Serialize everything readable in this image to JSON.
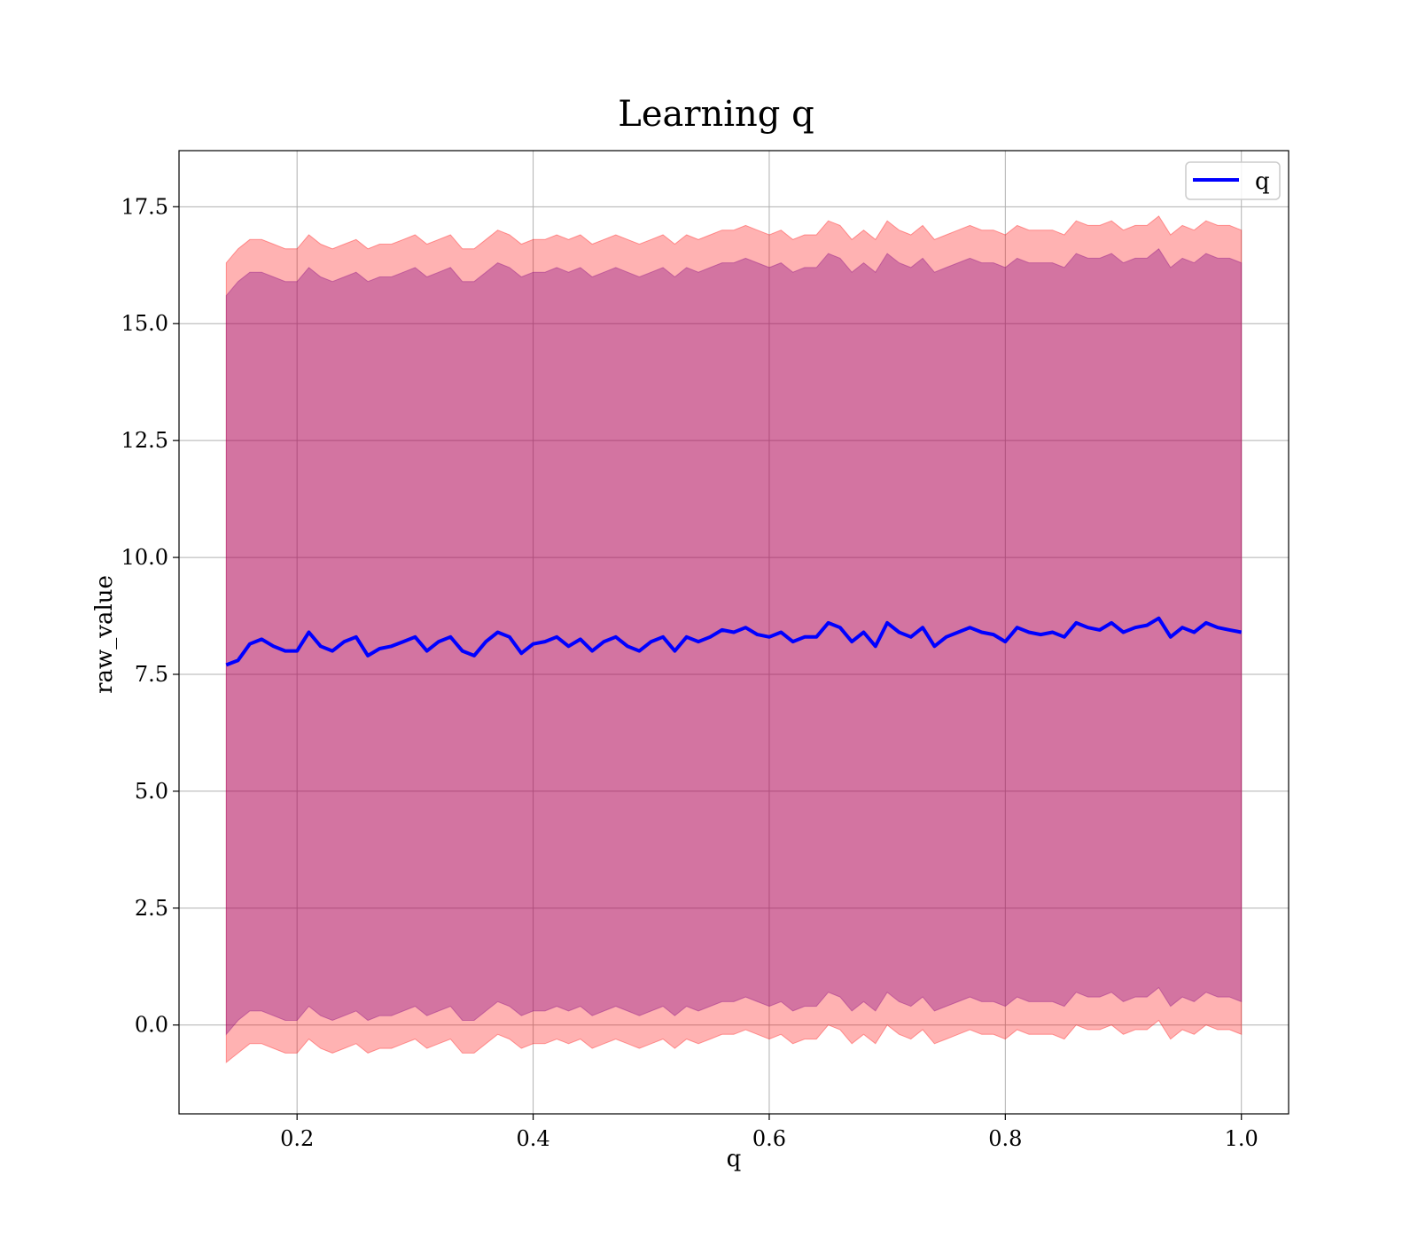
{
  "chart_data": {
    "type": "line",
    "title": "Learning q",
    "xlabel": "q",
    "ylabel": "raw_value",
    "xlim": [
      0.1,
      1.04
    ],
    "ylim": [
      -1.9,
      18.7
    ],
    "xticks": [
      0.2,
      0.4,
      0.6,
      0.8,
      1.0
    ],
    "xtick_labels": [
      "0.2",
      "0.4",
      "0.6",
      "0.8",
      "1.0"
    ],
    "yticks": [
      0.0,
      2.5,
      5.0,
      7.5,
      10.0,
      12.5,
      15.0,
      17.5
    ],
    "ytick_labels": [
      "0.0",
      "2.5",
      "5.0",
      "7.5",
      "10.0",
      "12.5",
      "15.0",
      "17.5"
    ],
    "grid": true,
    "legend": {
      "position": "top-right",
      "entries": [
        "q"
      ]
    },
    "series": [
      {
        "name": "q",
        "color": "#0000ff",
        "x": [
          0.14,
          0.15,
          0.16,
          0.17,
          0.18,
          0.19,
          0.2,
          0.21,
          0.22,
          0.23,
          0.24,
          0.25,
          0.26,
          0.27,
          0.28,
          0.29,
          0.3,
          0.31,
          0.32,
          0.33,
          0.34,
          0.35,
          0.36,
          0.37,
          0.38,
          0.39,
          0.4,
          0.41,
          0.42,
          0.43,
          0.44,
          0.45,
          0.46,
          0.47,
          0.48,
          0.49,
          0.5,
          0.51,
          0.52,
          0.53,
          0.54,
          0.55,
          0.56,
          0.57,
          0.58,
          0.59,
          0.6,
          0.61,
          0.62,
          0.63,
          0.64,
          0.65,
          0.66,
          0.67,
          0.68,
          0.69,
          0.7,
          0.71,
          0.72,
          0.73,
          0.74,
          0.75,
          0.76,
          0.77,
          0.78,
          0.79,
          0.8,
          0.81,
          0.82,
          0.83,
          0.84,
          0.85,
          0.86,
          0.87,
          0.88,
          0.89,
          0.9,
          0.91,
          0.92,
          0.93,
          0.94,
          0.95,
          0.96,
          0.97,
          0.98,
          0.99,
          1.0
        ],
        "y": [
          7.7,
          7.8,
          8.15,
          8.25,
          8.1,
          8.0,
          8.0,
          8.4,
          8.1,
          8.0,
          8.2,
          8.3,
          7.9,
          8.05,
          8.1,
          8.2,
          8.3,
          8.0,
          8.2,
          8.3,
          8.0,
          7.9,
          8.2,
          8.4,
          8.3,
          7.95,
          8.15,
          8.2,
          8.3,
          8.1,
          8.25,
          8.0,
          8.2,
          8.3,
          8.1,
          8.0,
          8.2,
          8.3,
          8.0,
          8.3,
          8.2,
          8.3,
          8.45,
          8.4,
          8.5,
          8.35,
          8.3,
          8.4,
          8.2,
          8.3,
          8.3,
          8.6,
          8.5,
          8.2,
          8.4,
          8.1,
          8.6,
          8.4,
          8.3,
          8.5,
          8.1,
          8.3,
          8.4,
          8.5,
          8.4,
          8.35,
          8.2,
          8.5,
          8.4,
          8.35,
          8.4,
          8.3,
          8.6,
          8.5,
          8.45,
          8.6,
          8.4,
          8.5,
          8.55,
          8.7,
          8.3,
          8.5,
          8.4,
          8.6,
          8.5,
          8.45,
          8.4
        ]
      },
      {
        "name": "",
        "color": "#ff0000",
        "opacity": 0.3,
        "x": [
          0.14,
          0.15,
          0.16,
          0.17,
          0.18,
          0.19,
          0.2,
          0.21,
          0.22,
          0.23,
          0.24,
          0.25,
          0.26,
          0.27,
          0.28,
          0.29,
          0.3,
          0.31,
          0.32,
          0.33,
          0.34,
          0.35,
          0.36,
          0.37,
          0.38,
          0.39,
          0.4,
          0.41,
          0.42,
          0.43,
          0.44,
          0.45,
          0.46,
          0.47,
          0.48,
          0.49,
          0.5,
          0.51,
          0.52,
          0.53,
          0.54,
          0.55,
          0.56,
          0.57,
          0.58,
          0.59,
          0.6,
          0.61,
          0.62,
          0.63,
          0.64,
          0.65,
          0.66,
          0.67,
          0.68,
          0.69,
          0.7,
          0.71,
          0.72,
          0.73,
          0.74,
          0.75,
          0.76,
          0.77,
          0.78,
          0.79,
          0.8,
          0.81,
          0.82,
          0.83,
          0.84,
          0.85,
          0.86,
          0.87,
          0.88,
          0.89,
          0.9,
          0.91,
          0.92,
          0.93,
          0.94,
          0.95,
          0.96,
          0.97,
          0.98,
          0.99,
          1.0
        ],
        "upper": [
          16.3,
          16.6,
          16.8,
          16.8,
          16.7,
          16.6,
          16.6,
          16.9,
          16.7,
          16.6,
          16.7,
          16.8,
          16.6,
          16.7,
          16.7,
          16.8,
          16.9,
          16.7,
          16.8,
          16.9,
          16.6,
          16.6,
          16.8,
          17.0,
          16.9,
          16.7,
          16.8,
          16.8,
          16.9,
          16.8,
          16.9,
          16.7,
          16.8,
          16.9,
          16.8,
          16.7,
          16.8,
          16.9,
          16.7,
          16.9,
          16.8,
          16.9,
          17.0,
          17.0,
          17.1,
          17.0,
          16.9,
          17.0,
          16.8,
          16.9,
          16.9,
          17.2,
          17.1,
          16.8,
          17.0,
          16.8,
          17.2,
          17.0,
          16.9,
          17.1,
          16.8,
          16.9,
          17.0,
          17.1,
          17.0,
          17.0,
          16.9,
          17.1,
          17.0,
          17.0,
          17.0,
          16.9,
          17.2,
          17.1,
          17.1,
          17.2,
          17.0,
          17.1,
          17.1,
          17.3,
          16.9,
          17.1,
          17.0,
          17.2,
          17.1,
          17.1,
          17.0
        ],
        "lower": [
          -0.8,
          -0.6,
          -0.4,
          -0.4,
          -0.5,
          -0.6,
          -0.6,
          -0.3,
          -0.5,
          -0.6,
          -0.5,
          -0.4,
          -0.6,
          -0.5,
          -0.5,
          -0.4,
          -0.3,
          -0.5,
          -0.4,
          -0.3,
          -0.6,
          -0.6,
          -0.4,
          -0.2,
          -0.3,
          -0.5,
          -0.4,
          -0.4,
          -0.3,
          -0.4,
          -0.3,
          -0.5,
          -0.4,
          -0.3,
          -0.4,
          -0.5,
          -0.4,
          -0.3,
          -0.5,
          -0.3,
          -0.4,
          -0.3,
          -0.2,
          -0.2,
          -0.1,
          -0.2,
          -0.3,
          -0.2,
          -0.4,
          -0.3,
          -0.3,
          0.0,
          -0.1,
          -0.4,
          -0.2,
          -0.4,
          0.0,
          -0.2,
          -0.3,
          -0.1,
          -0.4,
          -0.3,
          -0.2,
          -0.1,
          -0.2,
          -0.2,
          -0.3,
          -0.1,
          -0.2,
          -0.2,
          -0.2,
          -0.3,
          0.0,
          -0.1,
          -0.1,
          0.0,
          -0.2,
          -0.1,
          -0.1,
          0.1,
          -0.3,
          -0.1,
          -0.2,
          0.0,
          -0.1,
          -0.1,
          -0.2
        ]
      },
      {
        "name": "",
        "color": "#800080",
        "opacity": 0.35,
        "x": [
          0.14,
          0.15,
          0.16,
          0.17,
          0.18,
          0.19,
          0.2,
          0.21,
          0.22,
          0.23,
          0.24,
          0.25,
          0.26,
          0.27,
          0.28,
          0.29,
          0.3,
          0.31,
          0.32,
          0.33,
          0.34,
          0.35,
          0.36,
          0.37,
          0.38,
          0.39,
          0.4,
          0.41,
          0.42,
          0.43,
          0.44,
          0.45,
          0.46,
          0.47,
          0.48,
          0.49,
          0.5,
          0.51,
          0.52,
          0.53,
          0.54,
          0.55,
          0.56,
          0.57,
          0.58,
          0.59,
          0.6,
          0.61,
          0.62,
          0.63,
          0.64,
          0.65,
          0.66,
          0.67,
          0.68,
          0.69,
          0.7,
          0.71,
          0.72,
          0.73,
          0.74,
          0.75,
          0.76,
          0.77,
          0.78,
          0.79,
          0.8,
          0.81,
          0.82,
          0.83,
          0.84,
          0.85,
          0.86,
          0.87,
          0.88,
          0.89,
          0.9,
          0.91,
          0.92,
          0.93,
          0.94,
          0.95,
          0.96,
          0.97,
          0.98,
          0.99,
          1.0
        ],
        "upper": [
          15.6,
          15.9,
          16.1,
          16.1,
          16.0,
          15.9,
          15.9,
          16.2,
          16.0,
          15.9,
          16.0,
          16.1,
          15.9,
          16.0,
          16.0,
          16.1,
          16.2,
          16.0,
          16.1,
          16.2,
          15.9,
          15.9,
          16.1,
          16.3,
          16.2,
          16.0,
          16.1,
          16.1,
          16.2,
          16.1,
          16.2,
          16.0,
          16.1,
          16.2,
          16.1,
          16.0,
          16.1,
          16.2,
          16.0,
          16.2,
          16.1,
          16.2,
          16.3,
          16.3,
          16.4,
          16.3,
          16.2,
          16.3,
          16.1,
          16.2,
          16.2,
          16.5,
          16.4,
          16.1,
          16.3,
          16.1,
          16.5,
          16.3,
          16.2,
          16.4,
          16.1,
          16.2,
          16.3,
          16.4,
          16.3,
          16.3,
          16.2,
          16.4,
          16.3,
          16.3,
          16.3,
          16.2,
          16.5,
          16.4,
          16.4,
          16.5,
          16.3,
          16.4,
          16.4,
          16.6,
          16.2,
          16.4,
          16.3,
          16.5,
          16.4,
          16.4,
          16.3
        ],
        "lower": [
          -0.2,
          0.1,
          0.3,
          0.3,
          0.2,
          0.1,
          0.1,
          0.4,
          0.2,
          0.1,
          0.2,
          0.3,
          0.1,
          0.2,
          0.2,
          0.3,
          0.4,
          0.2,
          0.3,
          0.4,
          0.1,
          0.1,
          0.3,
          0.5,
          0.4,
          0.2,
          0.3,
          0.3,
          0.4,
          0.3,
          0.4,
          0.2,
          0.3,
          0.4,
          0.3,
          0.2,
          0.3,
          0.4,
          0.2,
          0.4,
          0.3,
          0.4,
          0.5,
          0.5,
          0.6,
          0.5,
          0.4,
          0.5,
          0.3,
          0.4,
          0.4,
          0.7,
          0.6,
          0.3,
          0.5,
          0.3,
          0.7,
          0.5,
          0.4,
          0.6,
          0.3,
          0.4,
          0.5,
          0.6,
          0.5,
          0.5,
          0.4,
          0.6,
          0.5,
          0.5,
          0.5,
          0.4,
          0.7,
          0.6,
          0.6,
          0.7,
          0.5,
          0.6,
          0.6,
          0.8,
          0.4,
          0.6,
          0.5,
          0.7,
          0.6,
          0.6,
          0.5
        ]
      }
    ]
  }
}
